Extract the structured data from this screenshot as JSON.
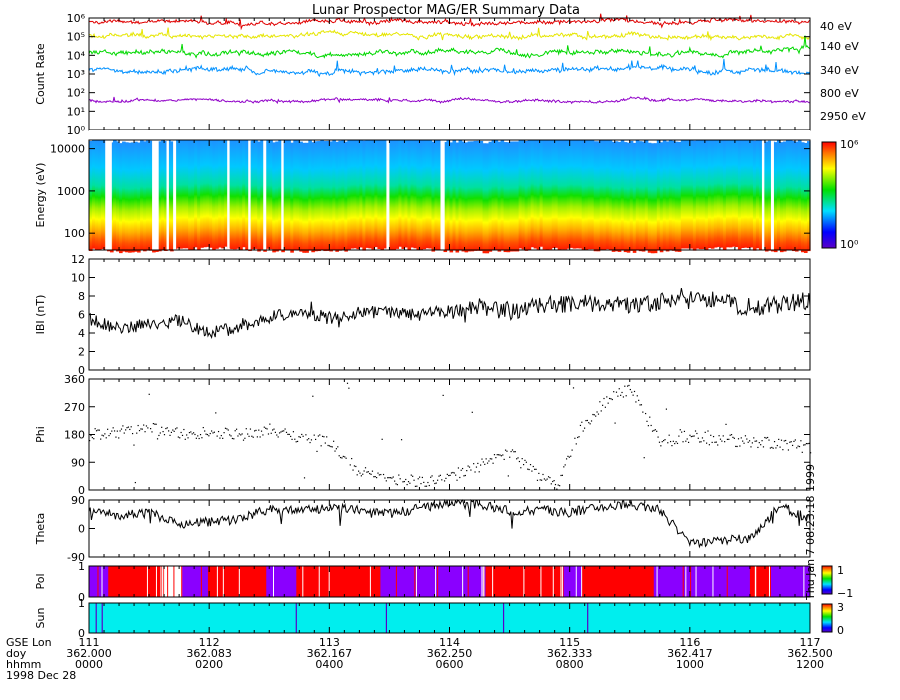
{
  "title": "Lunar Prospector MAG/ER Summary Data",
  "footer": {
    "row_labels": [
      "GSE Lon",
      "doy",
      "hhmm",
      "1998 Dec 28"
    ],
    "columns": [
      {
        "lon": "111",
        "doy": "362.000",
        "hhmm": "0000"
      },
      {
        "lon": "112",
        "doy": "362.083",
        "hhmm": "0200"
      },
      {
        "lon": "113",
        "doy": "362.167",
        "hhmm": "0400"
      },
      {
        "lon": "114",
        "doy": "362.250",
        "hhmm": "0600"
      },
      {
        "lon": "115",
        "doy": "362.333",
        "hhmm": "0800"
      },
      {
        "lon": "116",
        "doy": "362.417",
        "hhmm": "1000"
      },
      {
        "lon": "117",
        "doy": "362.500",
        "hhmm": "1200"
      }
    ],
    "side_stamp": "Thu Jan 7 08:23:18 1999"
  },
  "colors": {
    "40": "#e00000",
    "140": "#e6e600",
    "340": "#00d800",
    "800": "#0090ff",
    "2950": "#9000c8",
    "mag": "#000000",
    "pol_plus": "#ff0000",
    "pol_minus": "#8a00ff",
    "sun": "#00eeee"
  },
  "chart_data": [
    {
      "type": "line",
      "panel": "count-rate",
      "title": "Lunar Prospector MAG/ER Summary Data",
      "ylabel": "Count Rate",
      "yscale": "log",
      "ylim": [
        1,
        1000000
      ],
      "ytick_labels": [
        "10⁰",
        "10¹",
        "10²",
        "10³",
        "10⁴",
        "10⁵",
        "10⁶"
      ],
      "xlim": [
        0,
        12
      ],
      "x_unit": "hours UT",
      "series": [
        {
          "name": "40 eV",
          "level": 700000,
          "noise": 0.35
        },
        {
          "name": "140 eV",
          "level": 120000,
          "noise": 0.4
        },
        {
          "name": "340 eV",
          "level": 15000,
          "noise": 0.45
        },
        {
          "name": "800 eV",
          "level": 1500,
          "noise": 0.45
        },
        {
          "name": "2950 eV",
          "level": 40,
          "noise": 0.25
        }
      ]
    },
    {
      "type": "heatmap",
      "panel": "energy-spectrogram",
      "ylabel": "Energy (eV)",
      "yscale": "log",
      "ylim": [
        40,
        16000
      ],
      "ytick_labels": [
        "100",
        "1000",
        "10000"
      ],
      "ytick_values": [
        100,
        1000,
        10000
      ],
      "colorbar": {
        "min_label": "10⁰",
        "max_label": "10⁶"
      },
      "data_gaps_hours": [
        [
          0.27,
          0.38
        ],
        [
          1.05,
          1.16
        ],
        [
          1.29,
          1.33
        ],
        [
          1.4,
          1.45
        ],
        [
          2.3,
          2.34
        ],
        [
          2.65,
          2.69
        ],
        [
          2.9,
          2.95
        ],
        [
          3.2,
          3.24
        ],
        [
          4.95,
          5.0
        ],
        [
          5.85,
          5.92
        ],
        [
          11.2,
          11.24
        ],
        [
          11.35,
          11.4
        ]
      ]
    },
    {
      "type": "line",
      "panel": "field-magnitude",
      "ylabel": "IBI (nT)",
      "ylim": [
        0,
        12
      ],
      "ytick_labels": [
        "0",
        "2",
        "4",
        "6",
        "8",
        "10",
        "12"
      ],
      "ytick_values": [
        0,
        2,
        4,
        6,
        8,
        10,
        12
      ],
      "x": [
        0,
        0.5,
        1,
        1.5,
        2,
        2.5,
        3,
        3.5,
        4,
        4.5,
        5,
        5.5,
        6,
        6.5,
        7,
        7.5,
        8,
        8.5,
        9,
        9.5,
        10,
        10.5,
        11,
        11.5,
        12
      ],
      "values": [
        5.5,
        4.5,
        5,
        5.3,
        4,
        4.6,
        5.7,
        6.3,
        5.6,
        6.3,
        6.2,
        6,
        6.3,
        6.8,
        6.4,
        7,
        7.1,
        7.3,
        7.1,
        7.3,
        8.2,
        7.4,
        6.8,
        7.1,
        7.5
      ]
    },
    {
      "type": "scatter",
      "panel": "phi",
      "ylabel": "Phi",
      "ylim": [
        0,
        360
      ],
      "ytick_labels": [
        "0",
        "90",
        "180",
        "270",
        "360"
      ],
      "ytick_values": [
        0,
        90,
        180,
        270,
        360
      ],
      "x": [
        0,
        0.5,
        1,
        1.5,
        2,
        2.5,
        3,
        3.5,
        4,
        4.5,
        5,
        5.5,
        6,
        6.5,
        7,
        7.5,
        7.8,
        8.2,
        8.6,
        9,
        9.5,
        10,
        10.5,
        11,
        11.5,
        12
      ],
      "values": [
        180,
        190,
        200,
        185,
        190,
        180,
        200,
        170,
        160,
        60,
        40,
        30,
        45,
        80,
        120,
        40,
        20,
        210,
        290,
        330,
        160,
        175,
        165,
        160,
        150,
        140
      ]
    },
    {
      "type": "line",
      "panel": "theta",
      "ylabel": "Theta",
      "ylim": [
        -90,
        90
      ],
      "ytick_labels": [
        "-90",
        "0",
        "90"
      ],
      "ytick_values": [
        -90,
        0,
        90
      ],
      "x": [
        0,
        0.5,
        1,
        1.5,
        2,
        2.5,
        3,
        3.5,
        4,
        4.5,
        5,
        5.5,
        6,
        6.5,
        7,
        7.5,
        8,
        8.5,
        9,
        9.5,
        10,
        10.5,
        11,
        11.5,
        12
      ],
      "values": [
        60,
        40,
        50,
        15,
        20,
        30,
        60,
        55,
        65,
        60,
        45,
        65,
        80,
        75,
        55,
        60,
        50,
        70,
        75,
        60,
        -50,
        -40,
        -30,
        70,
        30
      ]
    },
    {
      "type": "heatmap",
      "panel": "polarity",
      "ylabel": "Pol",
      "ylim": [
        0,
        1
      ],
      "ytick_labels": [
        "0",
        "1"
      ],
      "colorbar": {
        "min_label": "−1",
        "max_label": "1"
      },
      "segments_hours": [
        [
          0.0,
          0.32,
          -1
        ],
        [
          0.32,
          0.42,
          1
        ],
        [
          0.42,
          1.25,
          1
        ],
        [
          1.25,
          1.55,
          0
        ],
        [
          1.55,
          1.98,
          -1
        ],
        [
          1.98,
          2.5,
          1
        ],
        [
          2.5,
          2.95,
          1
        ],
        [
          2.95,
          3.45,
          -1
        ],
        [
          3.45,
          4.7,
          1
        ],
        [
          4.7,
          4.85,
          1
        ],
        [
          4.85,
          6.0,
          -1
        ],
        [
          6.0,
          6.6,
          -1
        ],
        [
          6.6,
          7.9,
          1
        ],
        [
          7.9,
          8.2,
          -1
        ],
        [
          8.2,
          8.9,
          1
        ],
        [
          8.9,
          9.4,
          1
        ],
        [
          9.4,
          11.0,
          -1
        ],
        [
          11.0,
          11.35,
          1
        ],
        [
          11.35,
          12.0,
          -1
        ]
      ]
    },
    {
      "type": "heatmap",
      "panel": "sun",
      "ylabel": "Sun",
      "ylim": [
        0,
        1
      ],
      "ytick_labels": [
        "0",
        "1"
      ],
      "colorbar": {
        "min_label": "0",
        "max_label": "3"
      },
      "markers_hours": [
        0.12,
        0.22,
        3.45,
        4.95,
        6.9,
        8.3
      ]
    }
  ],
  "legend": [
    "40 eV",
    "140 eV",
    "340 eV",
    "800 eV",
    "2950 eV"
  ]
}
